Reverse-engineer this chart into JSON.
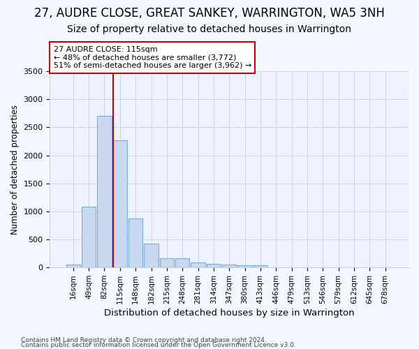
{
  "title": "27, AUDRE CLOSE, GREAT SANKEY, WARRINGTON, WA5 3NH",
  "subtitle": "Size of property relative to detached houses in Warrington",
  "xlabel": "Distribution of detached houses by size in Warrington",
  "ylabel": "Number of detached properties",
  "categories": [
    "16sqm",
    "49sqm",
    "82sqm",
    "115sqm",
    "148sqm",
    "182sqm",
    "215sqm",
    "248sqm",
    "281sqm",
    "314sqm",
    "347sqm",
    "380sqm",
    "413sqm",
    "446sqm",
    "479sqm",
    "513sqm",
    "546sqm",
    "579sqm",
    "612sqm",
    "645sqm",
    "678sqm"
  ],
  "values": [
    55,
    1090,
    2710,
    2270,
    880,
    420,
    170,
    160,
    90,
    60,
    50,
    40,
    35,
    8,
    8,
    0,
    0,
    0,
    0,
    0,
    0
  ],
  "bar_color": "#c8d8f0",
  "bar_edge_color": "#7aacd4",
  "marker_color": "#cc0000",
  "ylim": [
    0,
    3500
  ],
  "yticks": [
    0,
    500,
    1000,
    1500,
    2000,
    2500,
    3000,
    3500
  ],
  "annotation_title": "27 AUDRE CLOSE: 115sqm",
  "annotation_line1": "← 48% of detached houses are smaller (3,772)",
  "annotation_line2": "51% of semi-detached houses are larger (3,962) →",
  "footnote1": "Contains HM Land Registry data © Crown copyright and database right 2024.",
  "footnote2": "Contains public sector information licensed under the Open Government Licence v3.0.",
  "title_fontsize": 12,
  "subtitle_fontsize": 10,
  "background_color": "#f5f7ff",
  "plot_background_color": "#eef2ff",
  "grid_color": "#c8cfe0"
}
